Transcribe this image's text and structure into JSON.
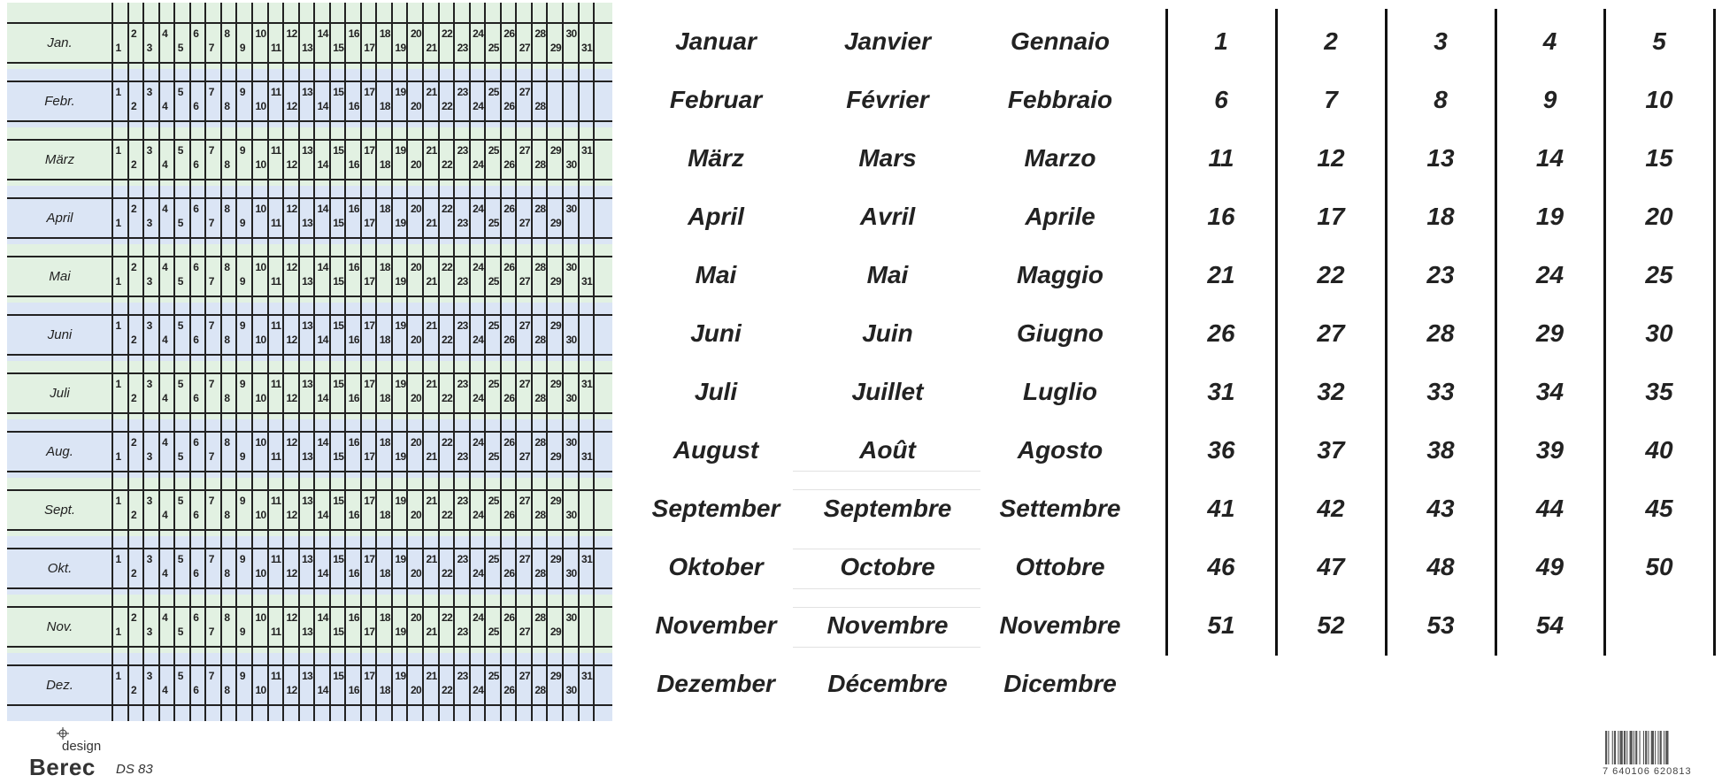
{
  "calendar": {
    "months": [
      {
        "label": "Jan.",
        "days": 31
      },
      {
        "label": "Febr.",
        "days": 28
      },
      {
        "label": "März",
        "days": 31
      },
      {
        "label": "April",
        "days": 30
      },
      {
        "label": "Mai",
        "days": 31
      },
      {
        "label": "Juni",
        "days": 30
      },
      {
        "label": "Juli",
        "days": 31
      },
      {
        "label": "Aug.",
        "days": 31
      },
      {
        "label": "Sept.",
        "days": 30
      },
      {
        "label": "Okt.",
        "days": 31
      },
      {
        "label": "Nov.",
        "days": 30
      },
      {
        "label": "Dez.",
        "days": 31
      }
    ],
    "colors": {
      "green": "#e2f1e2",
      "blue": "#dbe5f5",
      "lines": "#222222"
    }
  },
  "month_names": {
    "german": [
      "Januar",
      "Februar",
      "März",
      "April",
      "Mai",
      "Juni",
      "Juli",
      "August",
      "September",
      "Oktober",
      "November",
      "Dezember"
    ],
    "french": [
      "Janvier",
      "Février",
      "Mars",
      "Avril",
      "Mai",
      "Juin",
      "Juillet",
      "Août",
      "Septembre",
      "Octobre",
      "Novembre",
      "Décembre"
    ],
    "italian": [
      "Gennaio",
      "Febbraio",
      "Marzo",
      "Aprile",
      "Maggio",
      "Giugno",
      "Luglio",
      "Agosto",
      "Settembre",
      "Ottobre",
      "Novembre",
      "Dicembre"
    ]
  },
  "week_numbers": [
    "1",
    "2",
    "3",
    "4",
    "5",
    "6",
    "7",
    "8",
    "9",
    "10",
    "11",
    "12",
    "13",
    "14",
    "15",
    "16",
    "17",
    "18",
    "19",
    "20",
    "21",
    "22",
    "23",
    "24",
    "25",
    "26",
    "27",
    "28",
    "29",
    "30",
    "31",
    "32",
    "33",
    "34",
    "35",
    "36",
    "37",
    "38",
    "39",
    "40",
    "41",
    "42",
    "43",
    "44",
    "45",
    "46",
    "47",
    "48",
    "49",
    "50",
    "51",
    "52",
    "53",
    "54"
  ],
  "footer": {
    "brand": "Berec",
    "brand_sub": "design",
    "product_code": "DS 83",
    "barcode_digits": "7 640106 620813"
  }
}
